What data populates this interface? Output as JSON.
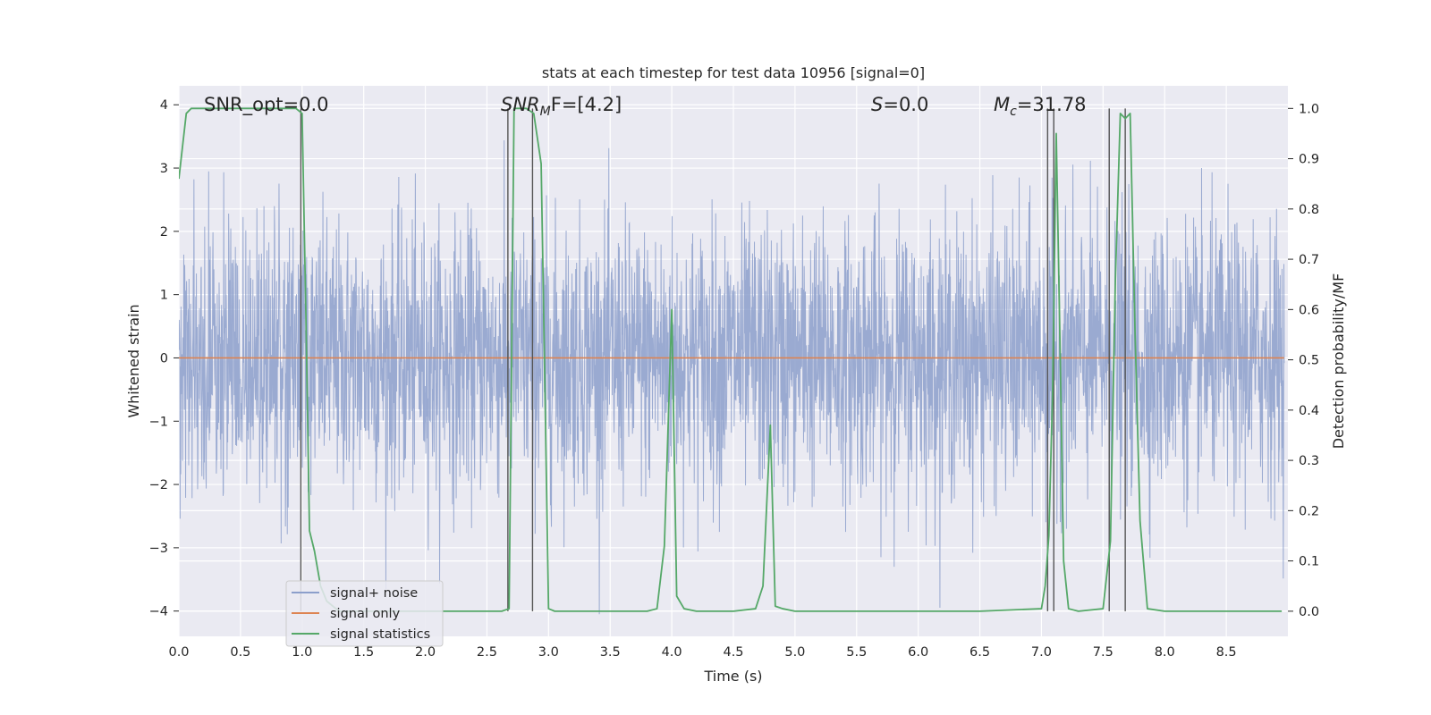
{
  "chart_data": {
    "type": "line",
    "title": "stats at each timestep for test data 10956 [signal=0]",
    "xlabel": "Time (s)",
    "ylabel_left": "Whitened strain",
    "ylabel_right": "Detection probability/MF",
    "xlim": [
      0.0,
      9.0
    ],
    "ylim_left": [
      -4.4,
      4.3
    ],
    "ylim_right": [
      -0.05,
      1.045
    ],
    "x_ticks": [
      "0.0",
      "0.5",
      "1.0",
      "1.5",
      "2.0",
      "2.5",
      "3.0",
      "3.5",
      "4.0",
      "4.5",
      "5.0",
      "5.5",
      "6.0",
      "6.5",
      "7.0",
      "7.5",
      "8.0",
      "8.5"
    ],
    "y_ticks_left": [
      "4",
      "3",
      "2",
      "1",
      "0",
      "−1",
      "−2",
      "−3",
      "−4"
    ],
    "y_ticks_right": [
      "1.0",
      "0.9",
      "0.8",
      "0.7",
      "0.6",
      "0.5",
      "0.4",
      "0.3",
      "0.2",
      "0.1",
      "0.0"
    ],
    "grid": true,
    "legend_position": "lower-left",
    "annotations": {
      "snr_opt": "SNR_opt=0.0",
      "snr_mf_main": "SNR",
      "snr_mf_sub": "M",
      "snr_mf_rest": "F=[4.2]",
      "s_main": "S",
      "s_rest": "=0.0",
      "mc_main": "M",
      "mc_sub": "c",
      "mc_rest": "=31.78"
    },
    "series": [
      {
        "name": "signal+ noise",
        "color": "#8c9fcb",
        "note": "whitened noise, 4096 Hz, amplitude range approx -4 to 4"
      },
      {
        "name": "signal only",
        "color": "#dd8452",
        "values_constant": 0.0
      },
      {
        "name": "signal statistics",
        "color": "#55a868",
        "x": [
          0.0,
          0.06,
          0.1,
          0.2,
          0.3,
          0.4,
          0.5,
          0.6,
          0.7,
          0.8,
          0.9,
          0.95,
          1.0,
          1.03,
          1.06,
          1.1,
          1.15,
          1.2,
          1.3,
          1.5,
          2.0,
          2.5,
          2.62,
          2.68,
          2.72,
          2.76,
          2.82,
          2.88,
          2.94,
          2.97,
          3.0,
          3.05,
          3.1,
          3.5,
          3.8,
          3.88,
          3.94,
          4.0,
          4.04,
          4.1,
          4.2,
          4.5,
          4.68,
          4.74,
          4.8,
          4.84,
          4.9,
          5.0,
          5.5,
          6.0,
          6.5,
          7.0,
          7.03,
          7.06,
          7.09,
          7.12,
          7.15,
          7.18,
          7.22,
          7.3,
          7.5,
          7.56,
          7.6,
          7.64,
          7.68,
          7.72,
          7.76,
          7.8,
          7.86,
          8.0,
          8.5,
          8.95
        ],
        "values": [
          0.86,
          0.99,
          1.0,
          1.0,
          1.0,
          1.0,
          1.0,
          1.0,
          1.0,
          1.0,
          1.0,
          1.0,
          0.99,
          0.6,
          0.16,
          0.12,
          0.05,
          0.02,
          0.0,
          0.0,
          0.0,
          0.0,
          0.0,
          0.005,
          1.0,
          1.0,
          1.0,
          0.99,
          0.89,
          0.45,
          0.005,
          0.0,
          0.0,
          0.0,
          0.0,
          0.005,
          0.13,
          0.6,
          0.03,
          0.005,
          0.0,
          0.0,
          0.005,
          0.05,
          0.37,
          0.01,
          0.005,
          0.0,
          0.0,
          0.0,
          0.0,
          0.005,
          0.05,
          0.15,
          0.43,
          0.95,
          0.54,
          0.1,
          0.005,
          0.0,
          0.005,
          0.14,
          0.66,
          0.99,
          0.98,
          0.99,
          0.55,
          0.18,
          0.005,
          0.0,
          0.0,
          0.0
        ]
      }
    ],
    "vertical_lines": [
      {
        "x": 0.99,
        "y_from": 0.0,
        "y_to": 1.0
      },
      {
        "x": 2.67,
        "y_from": 0.0,
        "y_to": 1.0
      },
      {
        "x": 2.87,
        "y_from": 0.0,
        "y_to": 1.0
      },
      {
        "x": 7.05,
        "y_from": 0.0,
        "y_to": 1.0
      },
      {
        "x": 7.1,
        "y_from": 0.0,
        "y_to": 1.0
      },
      {
        "x": 7.55,
        "y_from": 0.0,
        "y_to": 1.0
      },
      {
        "x": 7.68,
        "y_from": 0.0,
        "y_to": 1.0
      }
    ],
    "vertical_line_color": "#555555"
  }
}
